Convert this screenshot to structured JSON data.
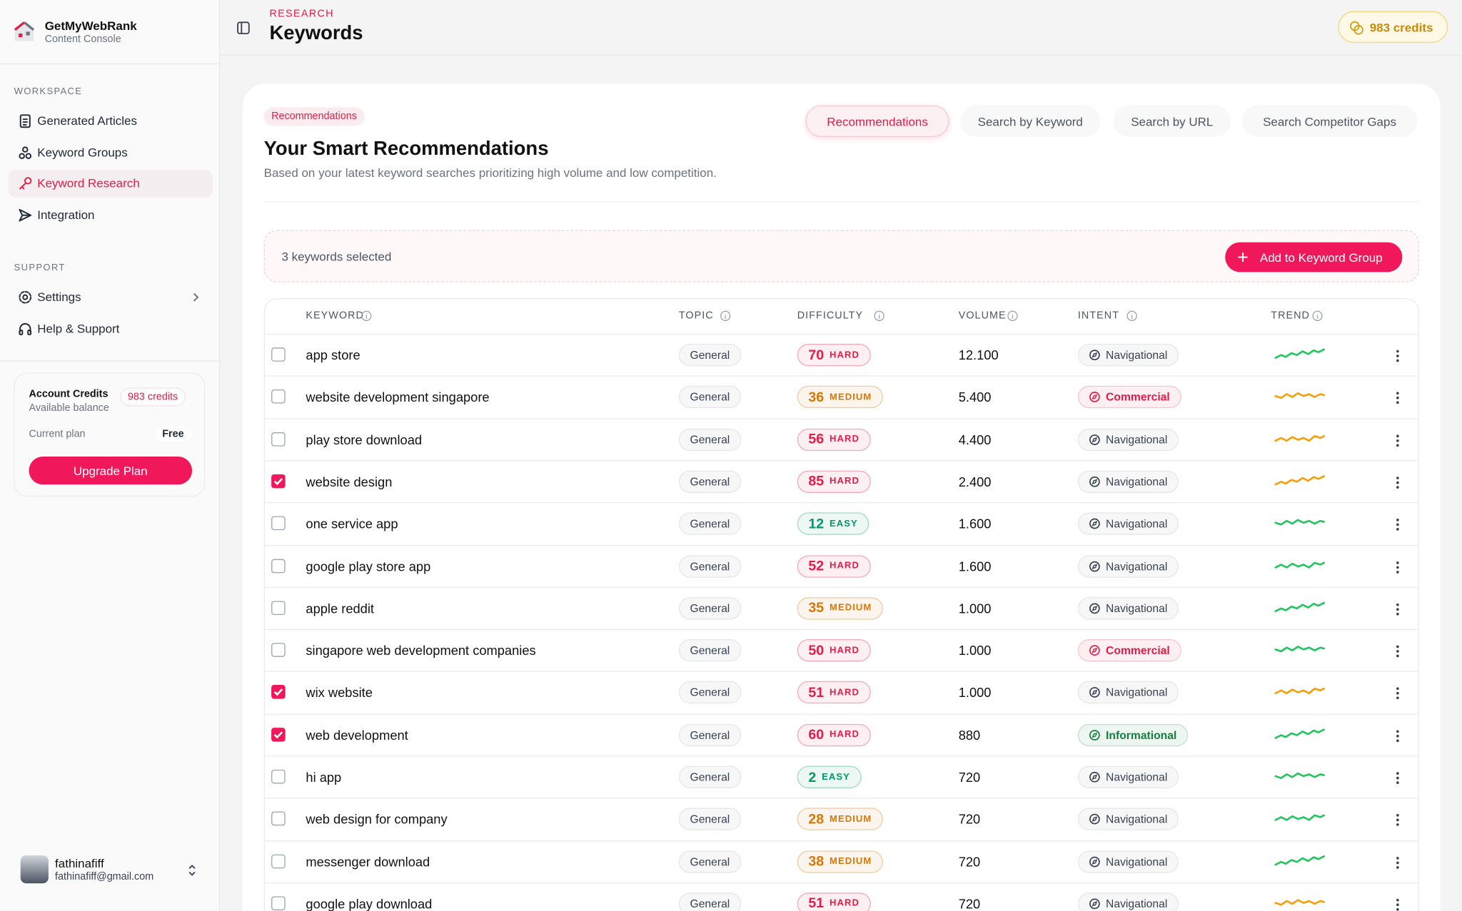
{
  "sidebar": {
    "brand": {
      "name": "GetMyWebRank",
      "subtitle": "Content Console"
    },
    "sections": [
      {
        "title": "WORKSPACE",
        "items": [
          {
            "label": "Generated Articles",
            "active": false
          },
          {
            "label": "Keyword Groups",
            "active": false
          },
          {
            "label": "Keyword Research",
            "active": true
          },
          {
            "label": "Integration",
            "active": false
          }
        ]
      },
      {
        "title": "SUPPORT",
        "items": [
          {
            "label": "Settings",
            "active": false
          },
          {
            "label": "Help & Support",
            "active": false
          }
        ]
      }
    ],
    "credits_card": {
      "title": "Account Credits",
      "subtitle": "Available balance",
      "credits": "983 credits",
      "plan_label": "Current plan",
      "plan": "Free",
      "button": "Upgrade Plan"
    },
    "user": {
      "name": "fathinafiff",
      "email": "fathinafiff@gmail.com"
    }
  },
  "header": {
    "eyebrow": "RESEARCH",
    "title": "Keywords",
    "credits": "983 credits"
  },
  "content": {
    "badge": "Recommendations",
    "tabs": [
      {
        "label": "Recommendations",
        "active": true
      },
      {
        "label": "Search by Keyword",
        "active": false
      },
      {
        "label": "Search by URL",
        "active": false
      },
      {
        "label": "Search Competitor Gaps",
        "active": false
      }
    ],
    "title": "Your Smart Recommendations",
    "description": "Based on your latest keyword searches prioritizing high volume and low competition.",
    "selection": {
      "text": "3 keywords selected",
      "button": "Add to Keyword Group"
    },
    "table": {
      "columns": [
        "KEYWORD",
        "TOPIC",
        "DIFFICULTY",
        "VOLUME",
        "INTENT",
        "TREND"
      ],
      "level_colors": {
        "HARD": "#e11d48",
        "MEDIUM": "#d97706",
        "EASY": "#059669"
      },
      "intent_colors": {
        "Navigational": "#374151",
        "Commercial": "#e11d48",
        "Informational": "#15803d"
      },
      "rows": [
        {
          "keyword": "app store",
          "topic": "General",
          "difficulty": 70,
          "level": "HARD",
          "volume": "12.100",
          "intent": "Navigational",
          "trend_color": "#22c55e",
          "selected": false
        },
        {
          "keyword": "website development singapore",
          "topic": "General",
          "difficulty": 36,
          "level": "MEDIUM",
          "volume": "5.400",
          "intent": "Commercial",
          "trend_color": "#f59e0b",
          "selected": false
        },
        {
          "keyword": "play store download",
          "topic": "General",
          "difficulty": 56,
          "level": "HARD",
          "volume": "4.400",
          "intent": "Navigational",
          "trend_color": "#f59e0b",
          "selected": false
        },
        {
          "keyword": "website design",
          "topic": "General",
          "difficulty": 85,
          "level": "HARD",
          "volume": "2.400",
          "intent": "Navigational",
          "trend_color": "#f59e0b",
          "selected": true
        },
        {
          "keyword": "one service app",
          "topic": "General",
          "difficulty": 12,
          "level": "EASY",
          "volume": "1.600",
          "intent": "Navigational",
          "trend_color": "#22c55e",
          "selected": false
        },
        {
          "keyword": "google play store app",
          "topic": "General",
          "difficulty": 52,
          "level": "HARD",
          "volume": "1.600",
          "intent": "Navigational",
          "trend_color": "#22c55e",
          "selected": false
        },
        {
          "keyword": "apple reddit",
          "topic": "General",
          "difficulty": 35,
          "level": "MEDIUM",
          "volume": "1.000",
          "intent": "Navigational",
          "trend_color": "#22c55e",
          "selected": false
        },
        {
          "keyword": "singapore web development companies",
          "topic": "General",
          "difficulty": 50,
          "level": "HARD",
          "volume": "1.000",
          "intent": "Commercial",
          "trend_color": "#22c55e",
          "selected": false
        },
        {
          "keyword": "wix website",
          "topic": "General",
          "difficulty": 51,
          "level": "HARD",
          "volume": "1.000",
          "intent": "Navigational",
          "trend_color": "#f59e0b",
          "selected": true
        },
        {
          "keyword": "web development",
          "topic": "General",
          "difficulty": 60,
          "level": "HARD",
          "volume": "880",
          "intent": "Informational",
          "trend_color": "#22c55e",
          "selected": true
        },
        {
          "keyword": "hi app",
          "topic": "General",
          "difficulty": 2,
          "level": "EASY",
          "volume": "720",
          "intent": "Navigational",
          "trend_color": "#22c55e",
          "selected": false
        },
        {
          "keyword": "web design for company",
          "topic": "General",
          "difficulty": 28,
          "level": "MEDIUM",
          "volume": "720",
          "intent": "Navigational",
          "trend_color": "#22c55e",
          "selected": false
        },
        {
          "keyword": "messenger download",
          "topic": "General",
          "difficulty": 38,
          "level": "MEDIUM",
          "volume": "720",
          "intent": "Navigational",
          "trend_color": "#22c55e",
          "selected": false
        },
        {
          "keyword": "google play download",
          "topic": "General",
          "difficulty": 51,
          "level": "HARD",
          "volume": "720",
          "intent": "Navigational",
          "trend_color": "#f59e0b",
          "selected": false
        }
      ]
    }
  }
}
